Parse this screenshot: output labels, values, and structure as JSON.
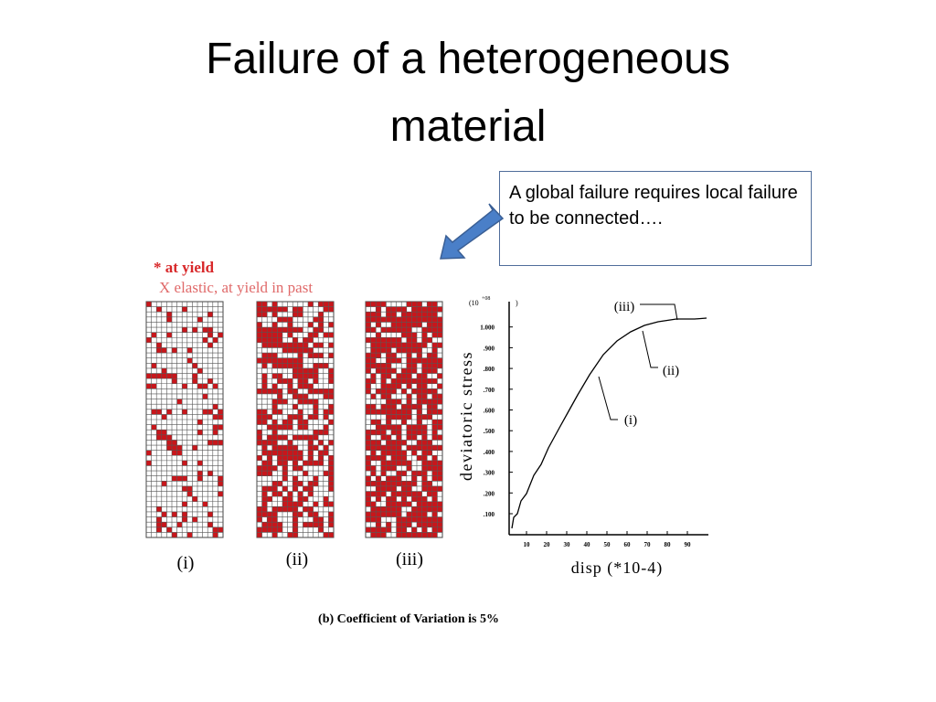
{
  "slide": {
    "title": "Failure of a heterogeneous material",
    "callout": "A global failure requires local failure to be connected….",
    "figure": {
      "legend": [
        "* at yield",
        "X elastic, at yield in past"
      ],
      "panel_labels": [
        "(i)",
        "(ii)",
        "(iii)"
      ],
      "plot": {
        "y_label": "deviatoric stress",
        "x_label": "disp (*10-4)",
        "y_unit": [
          "(10",
          "+08",
          ")"
        ],
        "y_ticks": [
          ".100",
          ".200",
          ".300",
          ".400",
          ".500",
          ".600",
          ".700",
          ".800",
          ".900",
          "1.000"
        ],
        "x_ticks": [
          "10",
          "20",
          "30",
          "40",
          "50",
          "60",
          "70",
          "80",
          "90"
        ],
        "annotations": [
          "(i)",
          "(ii)",
          "(iii)"
        ]
      },
      "caption": "(b) Coefficient of Variation is 5%"
    }
  }
}
